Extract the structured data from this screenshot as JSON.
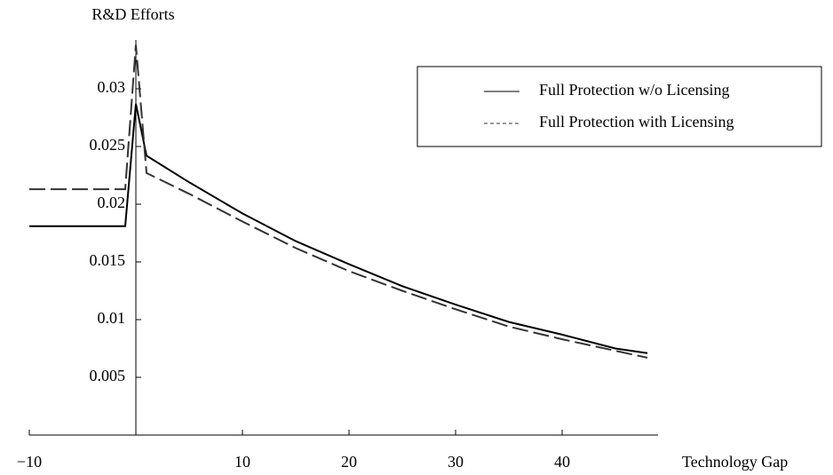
{
  "chart_data": {
    "type": "line",
    "y_label": "R&D Efforts",
    "x_label": "Technology Gap",
    "x": [
      -10,
      -1,
      0,
      1,
      5,
      10,
      15,
      20,
      25,
      30,
      35,
      40,
      45,
      48
    ],
    "series": [
      {
        "name": "Full Protection w/o Licensing",
        "color": "#000000",
        "dash": "none",
        "values": [
          0.0181,
          0.0181,
          0.0287,
          0.0242,
          0.0219,
          0.0192,
          0.0168,
          0.0148,
          0.0129,
          0.0113,
          0.0098,
          0.0087,
          0.0075,
          0.0071
        ]
      },
      {
        "name": "Full Protection with Licensing",
        "color": "#333333",
        "dash": "18 6",
        "values": [
          0.0213,
          0.0213,
          0.0338,
          0.0227,
          0.0209,
          0.0185,
          0.0162,
          0.0142,
          0.0125,
          0.0109,
          0.0094,
          0.0083,
          0.0073,
          0.0067
        ]
      }
    ],
    "xlim": [
      -10,
      49
    ],
    "ylim": [
      0,
      0.035
    ],
    "xticks": [
      {
        "value": -10,
        "label": "−10"
      },
      10,
      20,
      30,
      40
    ],
    "yticks": [
      0.005,
      0.01,
      0.015,
      0.02,
      0.025,
      0.03
    ],
    "legend": "top-right"
  }
}
